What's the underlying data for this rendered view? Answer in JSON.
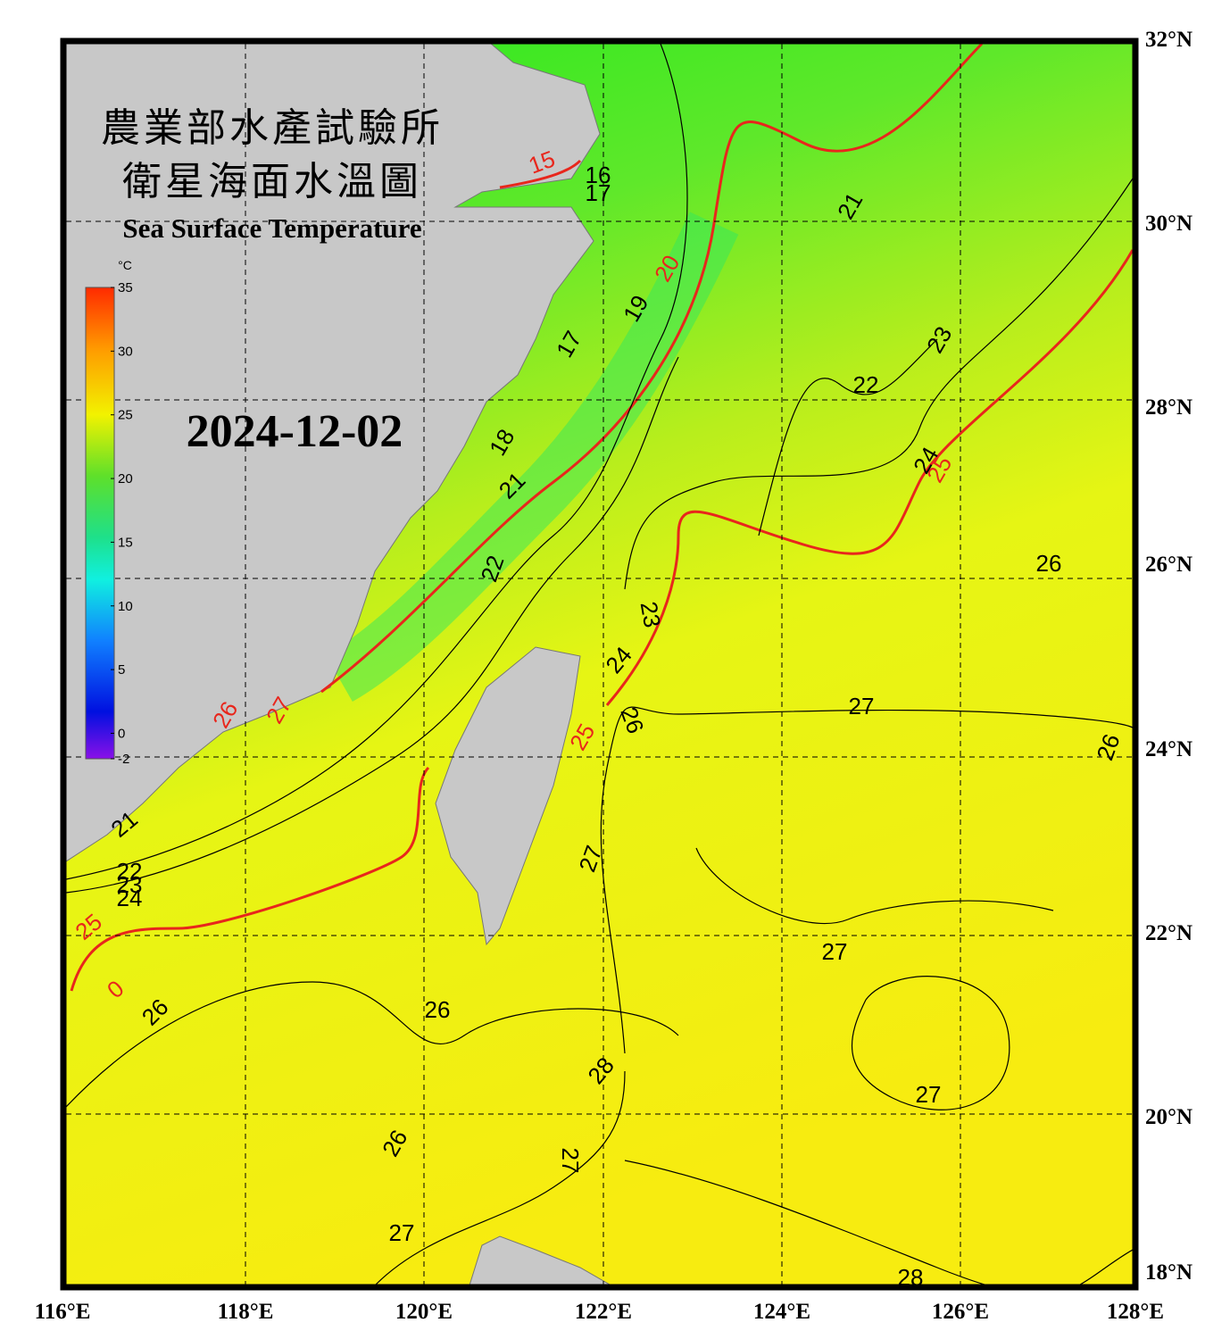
{
  "header": {
    "title_zh_1": "農業部水產試驗所",
    "title_zh_2": "衛星海面水溫圖",
    "title_en": "Sea Surface Temperature",
    "date": "2024-12-02"
  },
  "colorbar": {
    "unit": "°C",
    "ticks": [
      35,
      30,
      25,
      20,
      15,
      10,
      5,
      0,
      -2
    ]
  },
  "map": {
    "lon_labels": [
      "116°E",
      "118°E",
      "120°E",
      "122°E",
      "124°E",
      "126°E",
      "128°E"
    ],
    "lat_labels": [
      "32°N",
      "30°N",
      "28°N",
      "26°N",
      "24°N",
      "22°N",
      "20°N",
      "18°N"
    ]
  },
  "contour_labels": [
    "15",
    "16",
    "17",
    "20",
    "21",
    "19",
    "17",
    "18",
    "21",
    "22",
    "23",
    "24",
    "23",
    "22",
    "25",
    "24",
    "26",
    "26",
    "25",
    "26",
    "27",
    "27",
    "27",
    "21",
    "22",
    "23",
    "24",
    "25",
    "0",
    "26",
    "26",
    "26",
    "28",
    "27",
    "27",
    "27",
    "26",
    "27",
    "28"
  ]
}
